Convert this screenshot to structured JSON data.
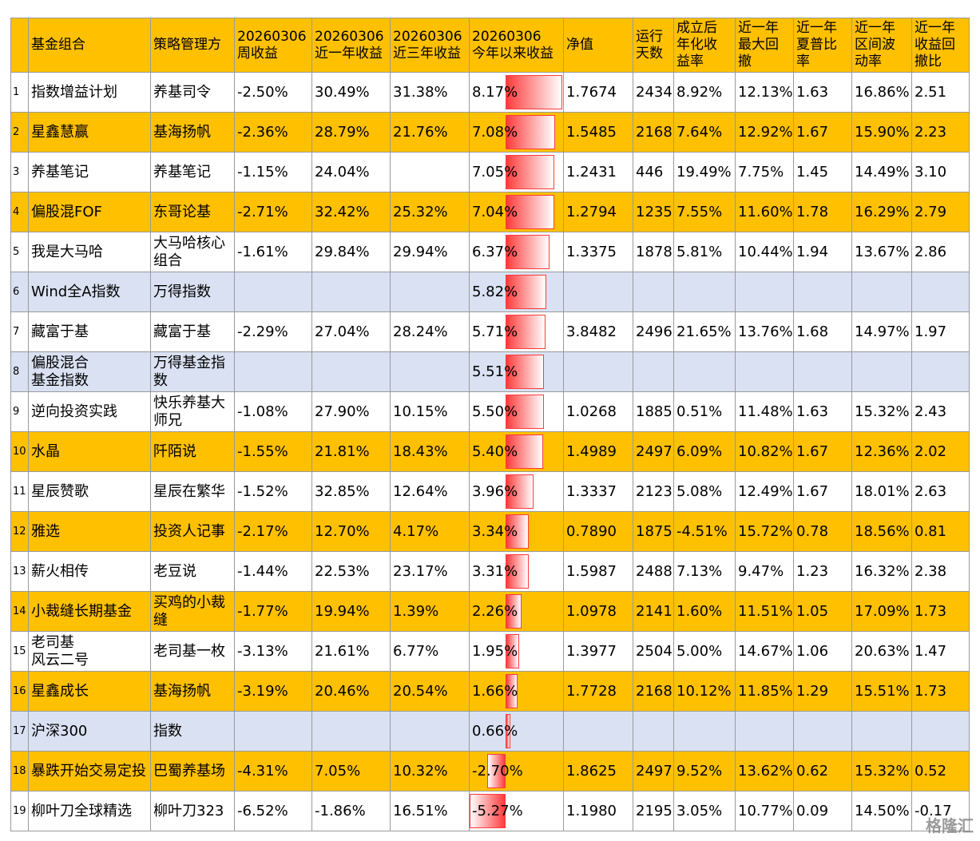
{
  "header": [
    null,
    "基金组合",
    "策略管理方",
    "20260306\n周收益",
    "20260306\n近一年收益",
    "20260306\n近三年收益",
    "20260306\n今年以来收益",
    "净值",
    "运行\n天数",
    "成立后\n年化收\n益率",
    "近一年\n最大回\n撤",
    "近一年\n夏普比\n率",
    "近一年\n区间波\n动率",
    "近一年\n收益回\n撤比"
  ],
  "header_color": "#FFC000",
  "ytd_column": 6,
  "bar_color": "#FF3B3B",
  "rows": [
    {
      "color": "#FFFFFF",
      "cells": [
        "1",
        "指数增益计划",
        "养基司令",
        "-2.50%",
        "30.49%",
        "31.38%",
        "1.7674",
        "2434",
        "8.92%",
        "12.13%",
        "1.63",
        "16.86%",
        "2.51"
      ]
    },
    {
      "color": "#FFC000",
      "cells": [
        "2",
        "星鑫慧赢",
        "基海扬帆",
        "-2.36%",
        "28.79%",
        "21.76%",
        "1.5485",
        "2168",
        "7.64%",
        "12.92%",
        "1.67",
        "15.90%",
        "2.23"
      ]
    },
    {
      "color": "#FFFFFF",
      "cells": [
        "3",
        "养基笔记",
        "养基笔记",
        "-1.15%",
        "24.04%",
        null,
        "1.2431",
        "446",
        "19.49%",
        "7.75%",
        "1.45",
        "14.49%",
        "3.10"
      ]
    },
    {
      "color": "#FFC000",
      "cells": [
        "4",
        "偏股混FOF",
        "东哥论基",
        "-2.71%",
        "32.42%",
        "25.32%",
        "1.2794",
        "1235",
        "7.55%",
        "11.60%",
        "1.78",
        "16.29%",
        "2.79"
      ]
    },
    {
      "color": "#FFFFFF",
      "cells": [
        "5",
        "我是大马哈",
        "大马哈核心组合",
        "-1.61%",
        "29.84%",
        "29.94%",
        "1.3375",
        "1878",
        "5.81%",
        "10.44%",
        "1.94",
        "13.67%",
        "2.86"
      ]
    },
    {
      "color": "#D9E1F2",
      "cells": [
        "6",
        "Wind全A指数",
        "万得指数",
        null,
        null,
        null,
        null,
        null,
        null,
        null,
        null,
        null,
        null
      ]
    },
    {
      "color": "#FFFFFF",
      "cells": [
        "7",
        "藏富于基",
        "藏富于基",
        "-2.29%",
        "27.04%",
        "28.24%",
        "3.8482",
        "2496",
        "21.65%",
        "13.76%",
        "1.68",
        "14.97%",
        "1.97"
      ]
    },
    {
      "color": "#D9E1F2",
      "cells": [
        "8",
        "偏股混合\n基金指数",
        "万得基金指数",
        null,
        null,
        null,
        null,
        null,
        null,
        null,
        null,
        null,
        null
      ]
    },
    {
      "color": "#FFFFFF",
      "cells": [
        "9",
        "逆向投资实践",
        "快乐养基大师兄",
        "-1.08%",
        "27.90%",
        "10.15%",
        "1.0268",
        "1885",
        "0.51%",
        "11.48%",
        "1.63",
        "15.32%",
        "2.43"
      ]
    },
    {
      "color": "#FFC000",
      "cells": [
        "10",
        "水晶",
        "阡陌说",
        "-1.55%",
        "21.81%",
        "18.43%",
        "1.4989",
        "2497",
        "6.09%",
        "10.82%",
        "1.67",
        "12.36%",
        "2.02"
      ]
    },
    {
      "color": "#FFFFFF",
      "cells": [
        "11",
        "星辰赞歌",
        "星辰在繁华",
        "-1.52%",
        "32.85%",
        "12.64%",
        "1.3337",
        "2123",
        "5.08%",
        "12.49%",
        "1.67",
        "18.01%",
        "2.63"
      ]
    },
    {
      "color": "#FFC000",
      "cells": [
        "12",
        "雅选",
        "投资人记事",
        "-2.17%",
        "12.70%",
        "4.17%",
        "0.7890",
        "1875",
        "-4.51%",
        "15.72%",
        "0.78",
        "18.56%",
        "0.81"
      ]
    },
    {
      "color": "#FFFFFF",
      "cells": [
        "13",
        "薪火相传",
        "老豆说",
        "-1.44%",
        "22.53%",
        "23.17%",
        "1.5987",
        "2488",
        "7.13%",
        "9.47%",
        "1.23",
        "16.32%",
        "2.38"
      ]
    },
    {
      "color": "#FFC000",
      "cells": [
        "14",
        "小裁缝长期基金",
        "买鸡的小裁缝",
        "-1.77%",
        "19.94%",
        "1.39%",
        "1.0978",
        "2141",
        "1.60%",
        "11.51%",
        "1.05",
        "17.09%",
        "1.73"
      ]
    },
    {
      "color": "#FFFFFF",
      "cells": [
        "15",
        "老司基\n风云二号",
        "老司基一枚",
        "-3.13%",
        "21.61%",
        "6.77%",
        "1.3977",
        "2504",
        "5.00%",
        "14.67%",
        "1.06",
        "20.63%",
        "1.47"
      ]
    },
    {
      "color": "#FFC000",
      "cells": [
        "16",
        "星鑫成长",
        "基海扬帆",
        "-3.19%",
        "20.46%",
        "20.54%",
        "1.7728",
        "2168",
        "10.12%",
        "11.85%",
        "1.29",
        "15.51%",
        "1.73"
      ]
    },
    {
      "color": "#D9E1F2",
      "cells": [
        "17",
        "沪深300",
        "指数",
        null,
        null,
        null,
        null,
        null,
        null,
        null,
        null,
        null,
        null
      ]
    },
    {
      "color": "#FFC000",
      "cells": [
        "18",
        "暴跌开始交易定投",
        "巴蜀养基场",
        "-4.31%",
        "7.05%",
        "10.32%",
        "1.8625",
        "2497",
        "9.52%",
        "13.62%",
        "0.62",
        "15.32%",
        "0.52"
      ]
    },
    {
      "color": "#FFFFFF",
      "cells": [
        "19",
        "柳叶刀全球精选",
        "柳叶刀323",
        "-6.52%",
        "-1.86%",
        "16.51%",
        "1.1980",
        "2195",
        "3.05%",
        "10.77%",
        "0.09",
        "14.50%",
        "-0.17"
      ]
    }
  ],
  "ytd": {
    "values": [
      8.17,
      7.08,
      7.05,
      7.04,
      6.37,
      5.82,
      5.71,
      5.51,
      5.5,
      5.4,
      3.96,
      3.34,
      3.31,
      2.26,
      1.95,
      1.66,
      0.66,
      -2.7,
      -5.27
    ],
    "value_labels": [
      "8.17%",
      "7.08%",
      "7.05%",
      "7.04%",
      "6.37%",
      "5.82%",
      "5.71%",
      "5.51%",
      "5.50%",
      "5.40%",
      "3.96%",
      "3.34%",
      "3.31%",
      "2.26%",
      "1.95%",
      "1.66%",
      "0.66%",
      "-2.70%",
      "-5.27%"
    ]
  },
  "watermark": "格隆汇"
}
